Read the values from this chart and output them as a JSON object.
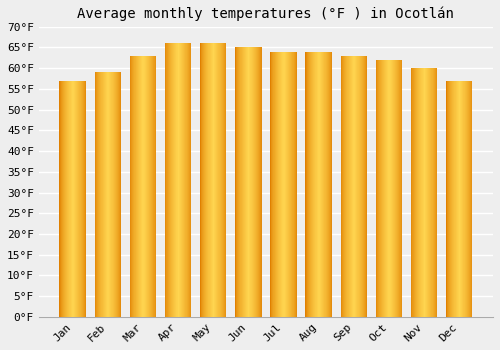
{
  "title": "Average monthly temperatures (°F ) in Ocotlán",
  "months": [
    "Jan",
    "Feb",
    "Mar",
    "Apr",
    "May",
    "Jun",
    "Jul",
    "Aug",
    "Sep",
    "Oct",
    "Nov",
    "Dec"
  ],
  "values": [
    57,
    59,
    63,
    66,
    66,
    65,
    64,
    64,
    63,
    62,
    60,
    57
  ],
  "ylim": [
    0,
    70
  ],
  "yticks": [
    0,
    5,
    10,
    15,
    20,
    25,
    30,
    35,
    40,
    45,
    50,
    55,
    60,
    65,
    70
  ],
  "background_color": "#eeeeee",
  "grid_color": "#ffffff",
  "bar_color_center": "#FFD04A",
  "bar_color_edge": "#E08000",
  "title_fontsize": 10,
  "tick_fontsize": 8
}
